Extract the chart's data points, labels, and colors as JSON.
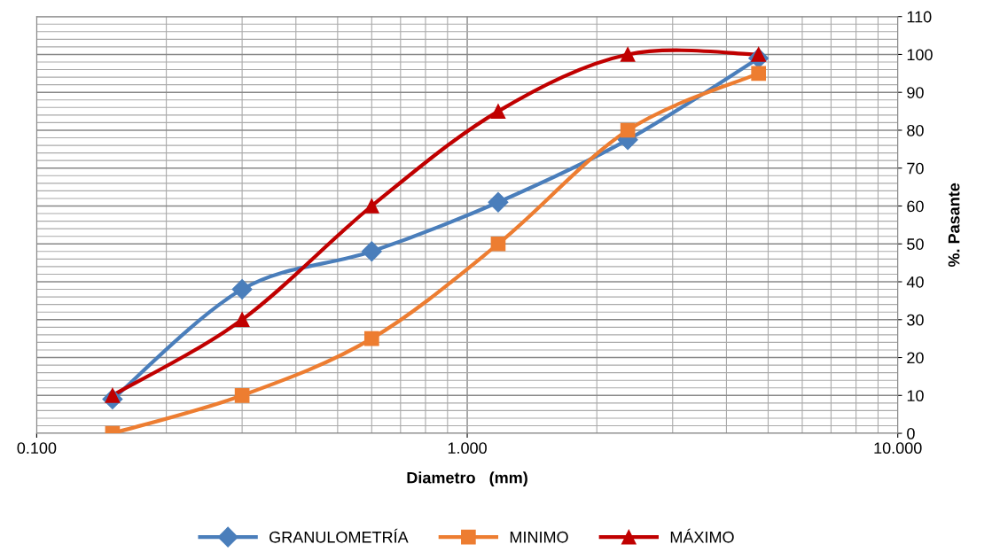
{
  "chart_data": {
    "type": "line",
    "xlabel": "Diametro   (mm)",
    "ylabel": "%. Pasante",
    "x": [
      0.15,
      0.3,
      0.6,
      1.18,
      2.36,
      4.75
    ],
    "series": [
      {
        "name": "GRANULOMETRÍA",
        "color": "#4a7ebb",
        "marker": "diamond",
        "values": [
          9,
          38,
          48,
          61,
          77.5,
          99
        ]
      },
      {
        "name": "MINIMO",
        "color": "#ed7d31",
        "marker": "square",
        "values": [
          0,
          10,
          25,
          50,
          80,
          95
        ]
      },
      {
        "name": "MÁXIMO",
        "color": "#c00000",
        "marker": "triangle",
        "values": [
          10,
          30,
          60,
          85,
          100,
          100
        ]
      }
    ],
    "log": "x",
    "xlim": [
      0.1,
      10
    ],
    "xticks": [
      {
        "value": 0.1,
        "label": "0.100"
      },
      {
        "value": 1,
        "label": "1.000"
      },
      {
        "value": 10,
        "label": "10.000"
      }
    ],
    "ylim": [
      0,
      110
    ],
    "yticks": [
      0,
      10,
      20,
      30,
      40,
      50,
      60,
      70,
      80,
      90,
      100,
      110
    ],
    "grid": true,
    "legend": "bottom",
    "line_style": "solid"
  }
}
